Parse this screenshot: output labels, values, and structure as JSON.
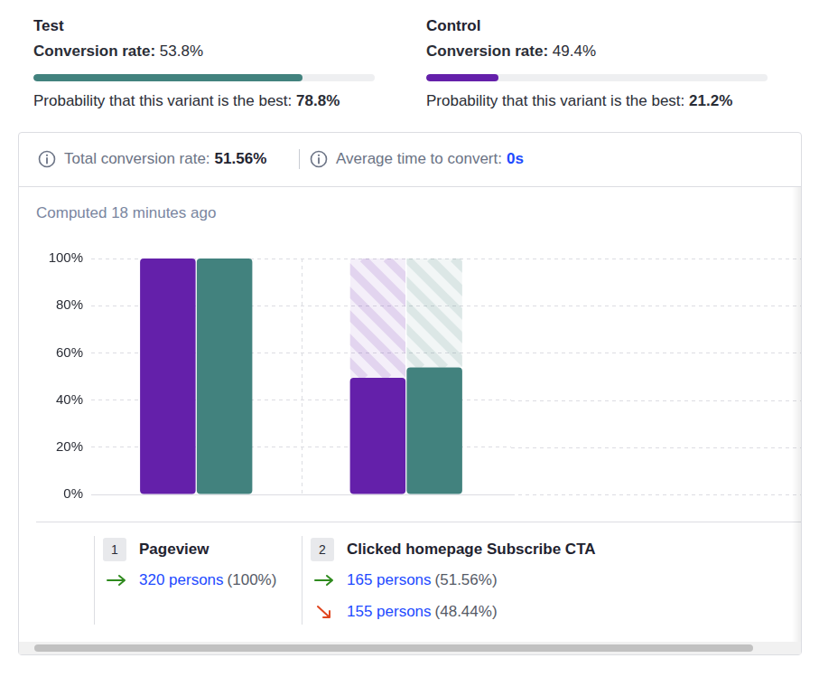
{
  "labels": {
    "conversion_rate": "Conversion rate:",
    "probability_best": "Probability that this variant is the best:"
  },
  "variants": [
    {
      "name": "Test",
      "conversion_rate": "53.8%",
      "probability_best": {
        "value": 78.8,
        "label": "78.8%"
      },
      "color": "#42827e"
    },
    {
      "name": "Control",
      "conversion_rate": "49.4%",
      "probability_best": {
        "value": 21.2,
        "label": "21.2%"
      },
      "color": "#6420aa"
    }
  ],
  "summary": {
    "total_conversion_rate_label": "Total conversion rate:",
    "total_conversion_rate": "51.56%",
    "average_time_label": "Average time to convert:",
    "average_time": "0s"
  },
  "computed": "Computed 18 minutes ago",
  "steps": [
    {
      "number": "1",
      "name": "Pageview",
      "converted": {
        "count": "320 persons",
        "share": "(100%)"
      }
    },
    {
      "number": "2",
      "name": "Clicked homepage Subscribe CTA",
      "converted": {
        "count": "165 persons",
        "share": "(51.56%)"
      },
      "dropped": {
        "count": "155 persons",
        "share": "(48.44%)"
      }
    }
  ],
  "chart_data": {
    "type": "bar",
    "categories": [
      null,
      null
    ],
    "series": [
      {
        "name": "Control",
        "color": "#6420aa",
        "values": [
          100,
          49.4
        ]
      },
      {
        "name": "Test",
        "color": "#42827e",
        "values": [
          100,
          53.8
        ]
      }
    ],
    "ylim": [
      0,
      100
    ],
    "yticks": [
      {
        "value": 0,
        "label": "0%"
      },
      {
        "value": 20,
        "label": "20%"
      },
      {
        "value": 40,
        "label": "40%"
      },
      {
        "value": 60,
        "label": "60%"
      },
      {
        "value": 80,
        "label": "80%"
      },
      {
        "value": 100,
        "label": "100%"
      }
    ],
    "grid": true,
    "tick_labels": "y"
  }
}
